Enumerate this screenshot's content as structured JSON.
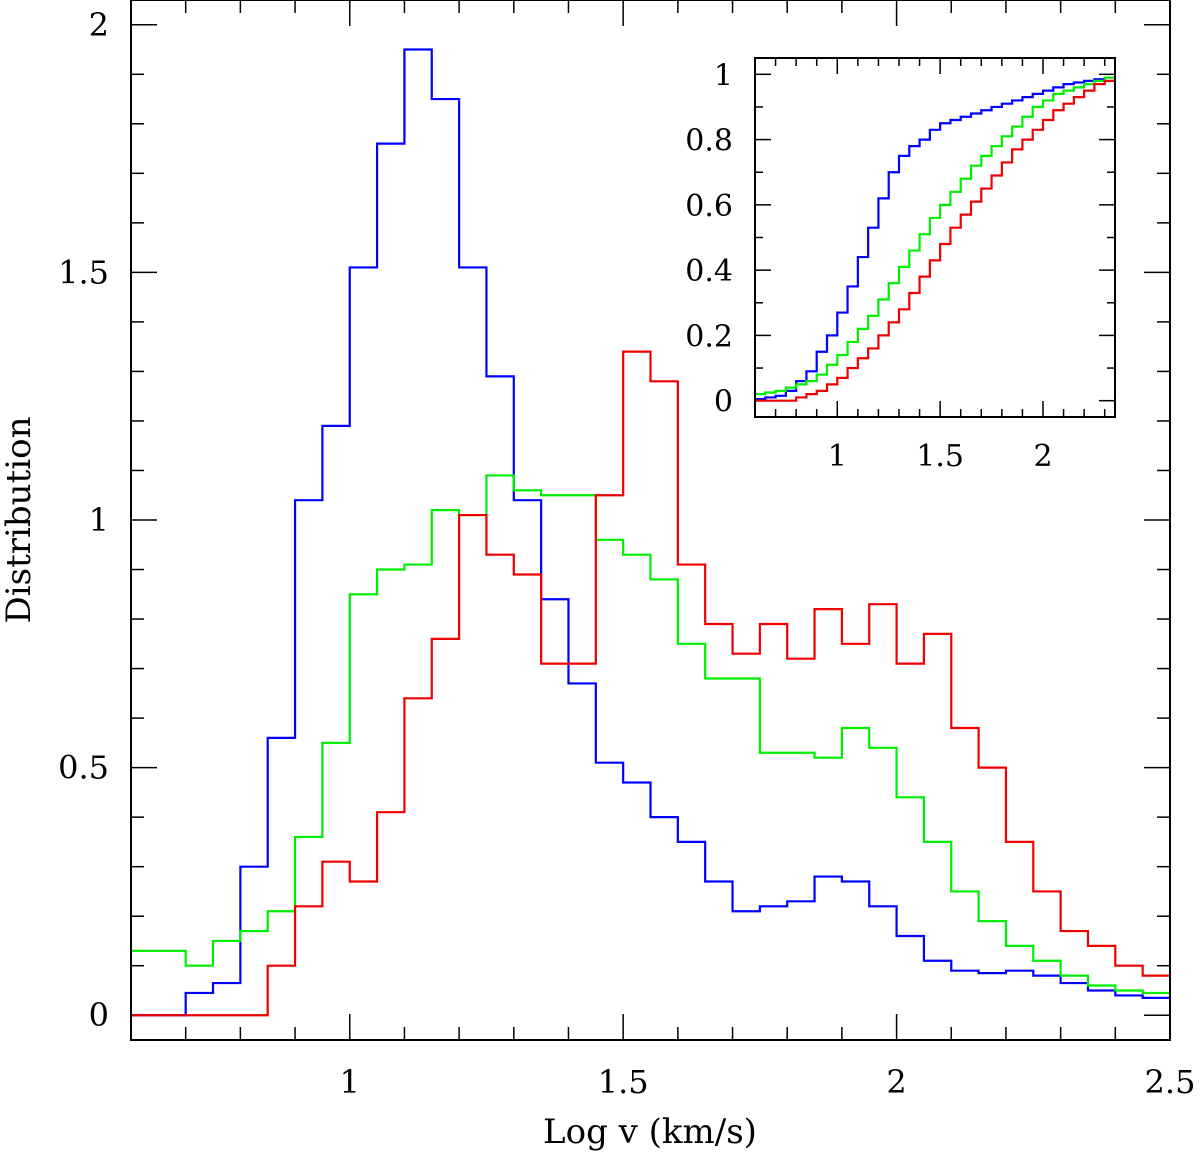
{
  "chart_data": {
    "type": "step-histogram",
    "xlabel": "Log v (km/s)",
    "ylabel": "Distribution",
    "xlim": [
      0.6,
      2.5
    ],
    "ylim": [
      -0.05,
      2.05
    ],
    "x_ticks": [
      1,
      1.5,
      2,
      2.5
    ],
    "x_tick_labels": [
      "1",
      "1.5",
      "2",
      "2.5"
    ],
    "y_ticks": [
      0,
      0.5,
      1,
      1.5,
      2
    ],
    "y_tick_labels": [
      "0",
      "0.5",
      "1",
      "1.5",
      "2"
    ],
    "bin_edges": [
      0.6,
      0.7,
      0.75,
      0.8,
      0.85,
      0.9,
      0.95,
      1.0,
      1.05,
      1.1,
      1.15,
      1.2,
      1.25,
      1.3,
      1.35,
      1.4,
      1.45,
      1.5,
      1.55,
      1.6,
      1.65,
      1.7,
      1.75,
      1.8,
      1.85,
      1.9,
      1.95,
      2.0,
      2.05,
      2.1,
      2.15,
      2.2,
      2.25,
      2.3,
      2.35,
      2.4,
      2.45,
      2.5
    ],
    "series": [
      {
        "name": "blue",
        "color": "#0000ff",
        "values": [
          0.0,
          0.045,
          0.065,
          0.3,
          0.56,
          1.04,
          1.19,
          1.51,
          1.76,
          1.95,
          1.85,
          1.51,
          1.29,
          1.04,
          0.84,
          0.67,
          0.51,
          0.47,
          0.4,
          0.35,
          0.27,
          0.21,
          0.22,
          0.23,
          0.28,
          0.27,
          0.22,
          0.16,
          0.11,
          0.09,
          0.085,
          0.09,
          0.08,
          0.065,
          0.05,
          0.04,
          0.035
        ]
      },
      {
        "name": "green",
        "color": "#00ee00",
        "values": [
          0.13,
          0.1,
          0.15,
          0.17,
          0.21,
          0.36,
          0.55,
          0.85,
          0.9,
          0.91,
          1.02,
          1.01,
          1.09,
          1.06,
          1.05,
          1.05,
          0.96,
          0.93,
          0.88,
          0.75,
          0.68,
          0.68,
          0.53,
          0.53,
          0.52,
          0.58,
          0.54,
          0.44,
          0.35,
          0.25,
          0.19,
          0.14,
          0.11,
          0.08,
          0.06,
          0.05,
          0.045
        ]
      },
      {
        "name": "red",
        "color": "#ee0000",
        "values": [
          0.0,
          0.0,
          0.0,
          0.0,
          0.1,
          0.22,
          0.31,
          0.27,
          0.41,
          0.64,
          0.76,
          1.01,
          0.93,
          0.89,
          0.71,
          0.71,
          1.05,
          1.34,
          1.28,
          0.91,
          0.79,
          0.73,
          0.79,
          0.72,
          0.82,
          0.75,
          0.83,
          0.71,
          0.77,
          0.58,
          0.5,
          0.35,
          0.25,
          0.17,
          0.14,
          0.1,
          0.08
        ]
      }
    ],
    "inset": {
      "type": "cumulative-step",
      "xlim": [
        0.6,
        2.35
      ],
      "ylim": [
        -0.05,
        1.05
      ],
      "x_ticks": [
        1,
        1.5,
        2
      ],
      "x_tick_labels": [
        "1",
        "1.5",
        "2"
      ],
      "y_ticks": [
        0,
        0.2,
        0.4,
        0.6,
        0.8,
        1
      ],
      "y_tick_labels": [
        "0",
        "0.2",
        "0.4",
        "0.6",
        "0.8",
        "1"
      ],
      "bin_edges": [
        0.6,
        0.65,
        0.7,
        0.75,
        0.8,
        0.85,
        0.9,
        0.95,
        1.0,
        1.05,
        1.1,
        1.15,
        1.2,
        1.25,
        1.3,
        1.35,
        1.4,
        1.45,
        1.5,
        1.55,
        1.6,
        1.65,
        1.7,
        1.75,
        1.8,
        1.85,
        1.9,
        1.95,
        2.0,
        2.05,
        2.1,
        2.15,
        2.2,
        2.25,
        2.3,
        2.35
      ],
      "series": [
        {
          "name": "blue",
          "color": "#0000ff",
          "values": [
            0.005,
            0.01,
            0.015,
            0.03,
            0.06,
            0.09,
            0.15,
            0.2,
            0.27,
            0.35,
            0.44,
            0.53,
            0.62,
            0.7,
            0.75,
            0.78,
            0.8,
            0.83,
            0.85,
            0.86,
            0.87,
            0.88,
            0.89,
            0.9,
            0.91,
            0.92,
            0.93,
            0.94,
            0.95,
            0.96,
            0.97,
            0.975,
            0.98,
            0.985,
            0.99
          ]
        },
        {
          "name": "green",
          "color": "#00ee00",
          "values": [
            0.02,
            0.025,
            0.03,
            0.04,
            0.05,
            0.06,
            0.08,
            0.11,
            0.14,
            0.18,
            0.22,
            0.26,
            0.31,
            0.36,
            0.41,
            0.46,
            0.51,
            0.56,
            0.6,
            0.64,
            0.68,
            0.72,
            0.75,
            0.78,
            0.81,
            0.84,
            0.87,
            0.9,
            0.92,
            0.94,
            0.95,
            0.96,
            0.97,
            0.98,
            0.99
          ]
        },
        {
          "name": "red",
          "color": "#ee0000",
          "values": [
            0.0,
            0.0,
            0.0,
            0.0,
            0.01,
            0.02,
            0.03,
            0.05,
            0.07,
            0.1,
            0.13,
            0.16,
            0.2,
            0.24,
            0.28,
            0.33,
            0.38,
            0.43,
            0.48,
            0.53,
            0.57,
            0.61,
            0.65,
            0.69,
            0.73,
            0.77,
            0.8,
            0.83,
            0.86,
            0.89,
            0.91,
            0.93,
            0.95,
            0.97,
            0.98
          ]
        }
      ]
    }
  }
}
